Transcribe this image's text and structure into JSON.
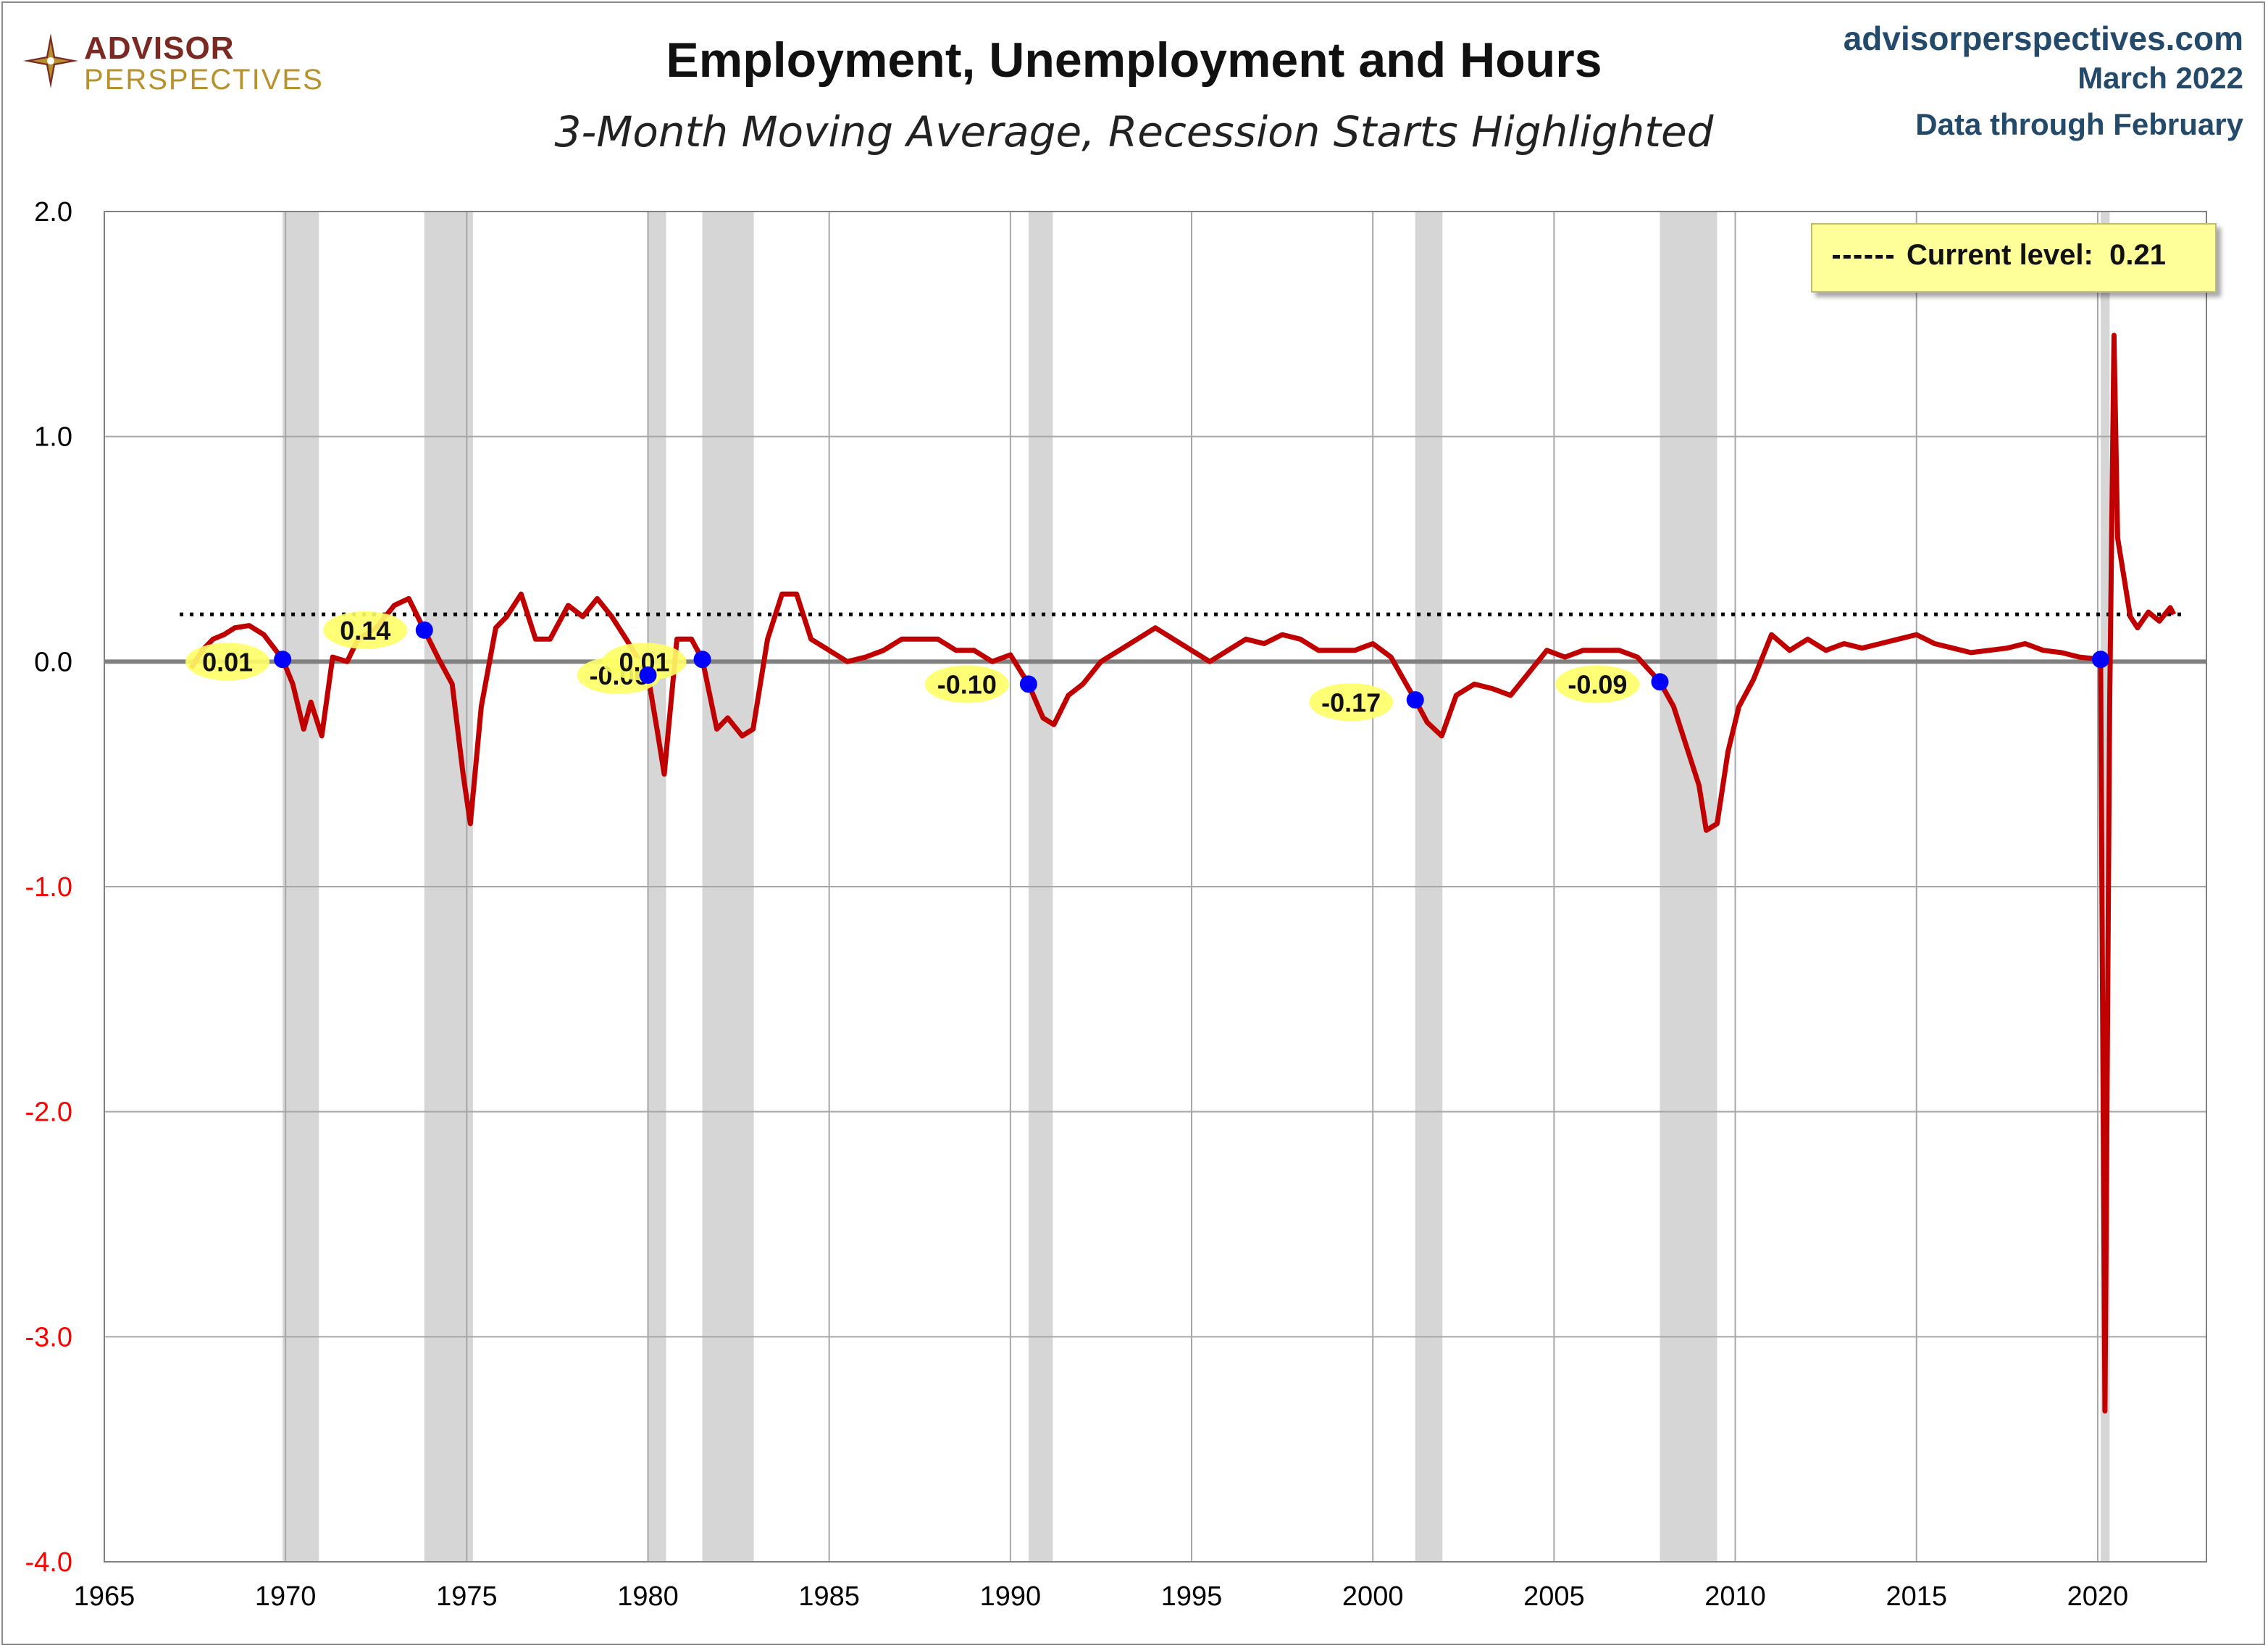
{
  "header": {
    "logo_line1": "ADVISOR",
    "logo_line2": "PERSPECTIVES",
    "title": "Employment, Unemployment and Hours",
    "subtitle": "3-Month Moving Average, Recession Starts Highlighted",
    "source_site": "advisorperspectives.com",
    "source_date": "March 2022",
    "source_through": "Data through February"
  },
  "legend": {
    "label": "Current level:",
    "value": "0.21"
  },
  "colors": {
    "series": "#c00000",
    "marker": "#0000ff",
    "recession": "#d6d6d6",
    "highlight": "#ffff66",
    "negative_tick": "#ff0000",
    "zero_line": "#808080"
  },
  "chart_data": {
    "type": "line",
    "title": "Employment, Unemployment and Hours",
    "subtitle": "3-Month Moving Average, Recession Starts Highlighted",
    "xlim": [
      1965,
      2023
    ],
    "ylim": [
      -4.0,
      2.0
    ],
    "x_ticks": [
      1965,
      1970,
      1975,
      1980,
      1985,
      1990,
      1995,
      2000,
      2005,
      2010,
      2015,
      2020
    ],
    "y_ticks": [
      {
        "v": 2.0,
        "label": "2.0"
      },
      {
        "v": 1.0,
        "label": "1.0"
      },
      {
        "v": 0.0,
        "label": "0.0"
      },
      {
        "v": -1.0,
        "label": "-1.0"
      },
      {
        "v": -2.0,
        "label": "-2.0"
      },
      {
        "v": -3.0,
        "label": "-3.0"
      },
      {
        "v": -4.0,
        "label": "-4.0"
      }
    ],
    "grid": true,
    "legend_position": "top-right",
    "current_level": 0.21,
    "recessions": [
      [
        1969.92,
        1970.92
      ],
      [
        1973.83,
        1975.17
      ],
      [
        1980.0,
        1980.5
      ],
      [
        1981.5,
        1982.92
      ],
      [
        1990.5,
        1991.17
      ],
      [
        2001.17,
        2001.92
      ],
      [
        2007.92,
        2009.5
      ],
      [
        2020.08,
        2020.33
      ]
    ],
    "recession_starts": [
      {
        "x": 1969.92,
        "y": 0.01,
        "label": "0.01",
        "label_x": 1968.4,
        "label_y": 0.0
      },
      {
        "x": 1973.83,
        "y": 0.14,
        "label": "0.14",
        "label_x": 1972.2,
        "label_y": 0.14
      },
      {
        "x": 1980.0,
        "y": -0.06,
        "label": "-0.06",
        "label_x": 1979.2,
        "label_y": -0.06
      },
      {
        "x": 1981.5,
        "y": 0.01,
        "label": "0.01",
        "label_x": 1979.9,
        "label_y": 0.0
      },
      {
        "x": 1990.5,
        "y": -0.1,
        "label": "-0.10",
        "label_x": 1988.8,
        "label_y": -0.1
      },
      {
        "x": 2001.17,
        "y": -0.17,
        "label": "-0.17",
        "label_x": 1999.4,
        "label_y": -0.18
      },
      {
        "x": 2007.92,
        "y": -0.09,
        "label": "-0.09",
        "label_x": 2006.2,
        "label_y": -0.1
      },
      {
        "x": 2020.08,
        "y": 0.01,
        "label": "",
        "label_x": 2020.08,
        "label_y": 0.01
      }
    ],
    "series": [
      {
        "x": [
          1967.4,
          1967.7,
          1968.0,
          1968.3,
          1968.6,
          1969.0,
          1969.4,
          1969.92,
          1970.2,
          1970.5,
          1970.7,
          1971.0,
          1971.3,
          1971.7,
          1972.0,
          1972.5,
          1973.0,
          1973.4,
          1973.83,
          1974.2,
          1974.6,
          1974.9,
          1975.1,
          1975.4,
          1975.8,
          1976.1,
          1976.5,
          1976.9,
          1977.3,
          1977.8,
          1978.2,
          1978.6,
          1979.0,
          1979.4,
          1980.0,
          1980.25,
          1980.45,
          1980.8,
          1981.2,
          1981.5,
          1981.9,
          1982.2,
          1982.6,
          1982.9,
          1983.3,
          1983.7,
          1984.1,
          1984.5,
          1985.0,
          1985.5,
          1986.0,
          1986.5,
          1987.0,
          1987.5,
          1988.0,
          1988.5,
          1989.0,
          1989.5,
          1990.0,
          1990.5,
          1990.9,
          1991.2,
          1991.6,
          1992.0,
          1992.5,
          1993.0,
          1993.5,
          1994.0,
          1994.5,
          1995.0,
          1995.5,
          1996.0,
          1996.5,
          1997.0,
          1997.5,
          1998.0,
          1998.5,
          1999.0,
          1999.5,
          2000.0,
          2000.5,
          2001.17,
          2001.5,
          2001.9,
          2002.3,
          2002.8,
          2003.3,
          2003.8,
          2004.3,
          2004.8,
          2005.3,
          2005.8,
          2006.3,
          2006.8,
          2007.3,
          2007.92,
          2008.3,
          2008.7,
          2009.0,
          2009.2,
          2009.5,
          2009.8,
          2010.1,
          2010.5,
          2011.0,
          2011.5,
          2012.0,
          2012.5,
          2013.0,
          2013.5,
          2014.0,
          2014.5,
          2015.0,
          2015.5,
          2016.0,
          2016.5,
          2017.0,
          2017.5,
          2018.0,
          2018.5,
          2019.0,
          2019.5,
          2020.08,
          2020.2,
          2020.33,
          2020.45,
          2020.55,
          2020.7,
          2020.9,
          2021.1,
          2021.4,
          2021.7,
          2022.0,
          2022.1
        ],
        "y": [
          -0.03,
          0.05,
          0.1,
          0.12,
          0.15,
          0.16,
          0.12,
          0.01,
          -0.1,
          -0.3,
          -0.18,
          -0.33,
          0.02,
          0.0,
          0.1,
          0.15,
          0.25,
          0.28,
          0.14,
          0.02,
          -0.1,
          -0.5,
          -0.72,
          -0.2,
          0.15,
          0.2,
          0.3,
          0.1,
          0.1,
          0.25,
          0.2,
          0.28,
          0.2,
          0.1,
          -0.06,
          -0.3,
          -0.5,
          0.1,
          0.1,
          0.01,
          -0.3,
          -0.25,
          -0.33,
          -0.3,
          0.1,
          0.3,
          0.3,
          0.1,
          0.05,
          0.0,
          0.02,
          0.05,
          0.1,
          0.1,
          0.1,
          0.05,
          0.05,
          0.0,
          0.03,
          -0.1,
          -0.25,
          -0.28,
          -0.15,
          -0.1,
          0.0,
          0.05,
          0.1,
          0.15,
          0.1,
          0.05,
          0.0,
          0.05,
          0.1,
          0.08,
          0.12,
          0.1,
          0.05,
          0.05,
          0.05,
          0.08,
          0.02,
          -0.17,
          -0.27,
          -0.33,
          -0.15,
          -0.1,
          -0.12,
          -0.15,
          -0.05,
          0.05,
          0.02,
          0.05,
          0.05,
          0.05,
          0.02,
          -0.09,
          -0.2,
          -0.4,
          -0.55,
          -0.75,
          -0.72,
          -0.4,
          -0.2,
          -0.08,
          0.12,
          0.05,
          0.1,
          0.05,
          0.08,
          0.06,
          0.08,
          0.1,
          0.12,
          0.08,
          0.06,
          0.04,
          0.05,
          0.06,
          0.08,
          0.05,
          0.04,
          0.02,
          0.01,
          -3.33,
          -0.2,
          1.45,
          0.55,
          0.4,
          0.2,
          0.15,
          0.22,
          0.18,
          0.24,
          0.21
        ]
      }
    ]
  }
}
